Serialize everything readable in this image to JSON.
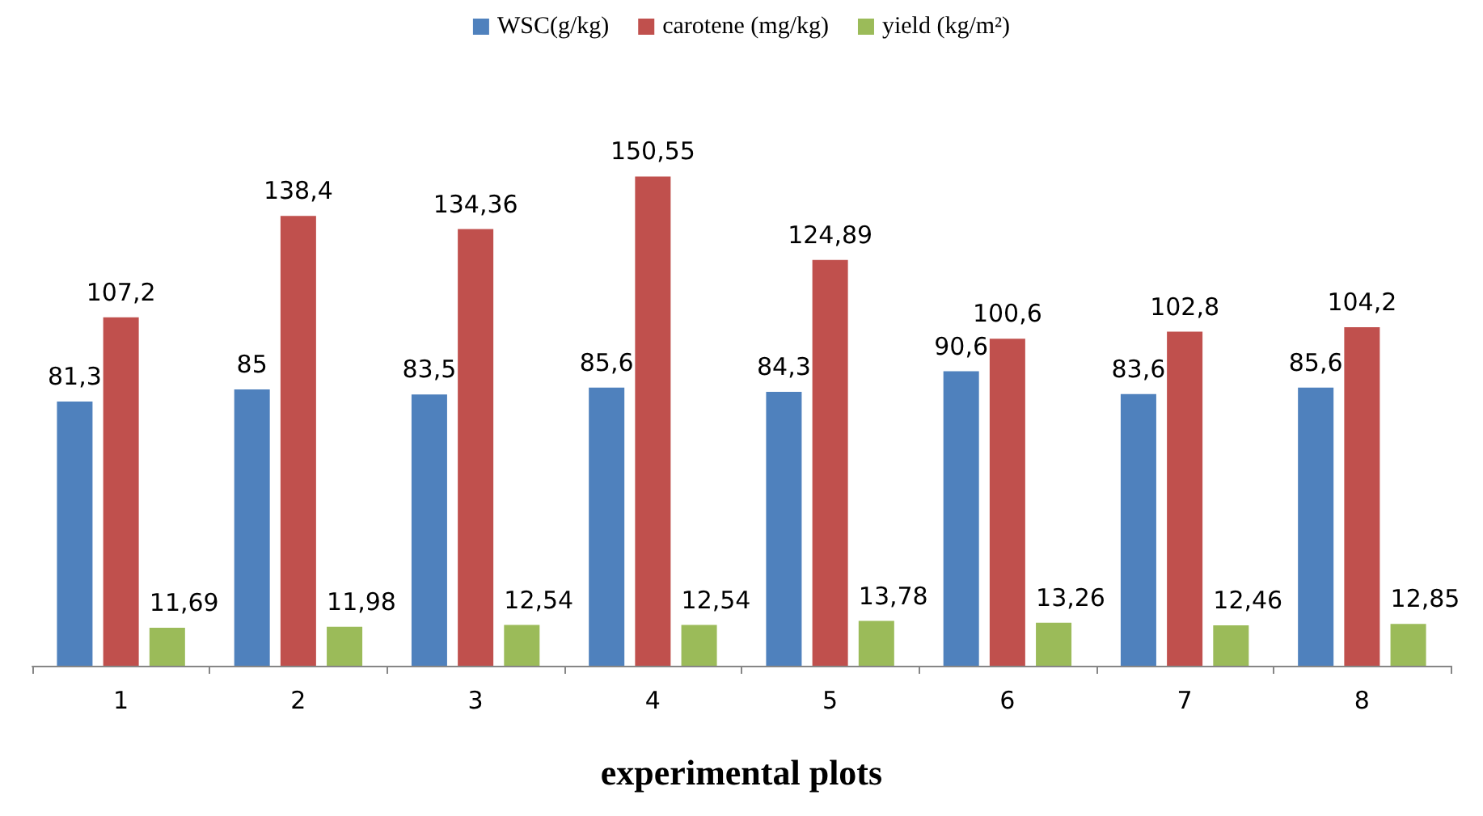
{
  "chart_data": {
    "type": "bar",
    "xlabel": "experimental plots",
    "categories": [
      "1",
      "2",
      "3",
      "4",
      "5",
      "6",
      "7",
      "8"
    ],
    "series": [
      {
        "name": "WSC(g/kg)",
        "color": "#4f81bd",
        "values": [
          81.3,
          85,
          83.5,
          85.6,
          84.3,
          90.6,
          83.6,
          85.6
        ],
        "value_labels": [
          "81,3",
          "85",
          "83,5",
          "85,6",
          "84,3",
          "90,6",
          "83,6",
          "85,6"
        ]
      },
      {
        "name": "carotene (mg/kg)",
        "color": "#c0504d",
        "values": [
          107.2,
          138.4,
          134.36,
          150.55,
          124.89,
          100.6,
          102.8,
          104.2
        ],
        "value_labels": [
          "107,2",
          "138,4",
          "134,36",
          "150,55",
          "124,89",
          "100,6",
          "102,8",
          "104,2"
        ]
      },
      {
        "name": "yield (kg/m²)",
        "color": "#9bbb59",
        "values": [
          11.69,
          11.98,
          12.54,
          12.54,
          13.78,
          13.26,
          12.46,
          12.85
        ],
        "value_labels": [
          "11,69",
          "11,98",
          "12,54",
          "12,54",
          "13,78",
          "13,26",
          "12,46",
          "12,85"
        ]
      }
    ],
    "legend": "top",
    "grid": false,
    "tick_labels": "x"
  }
}
